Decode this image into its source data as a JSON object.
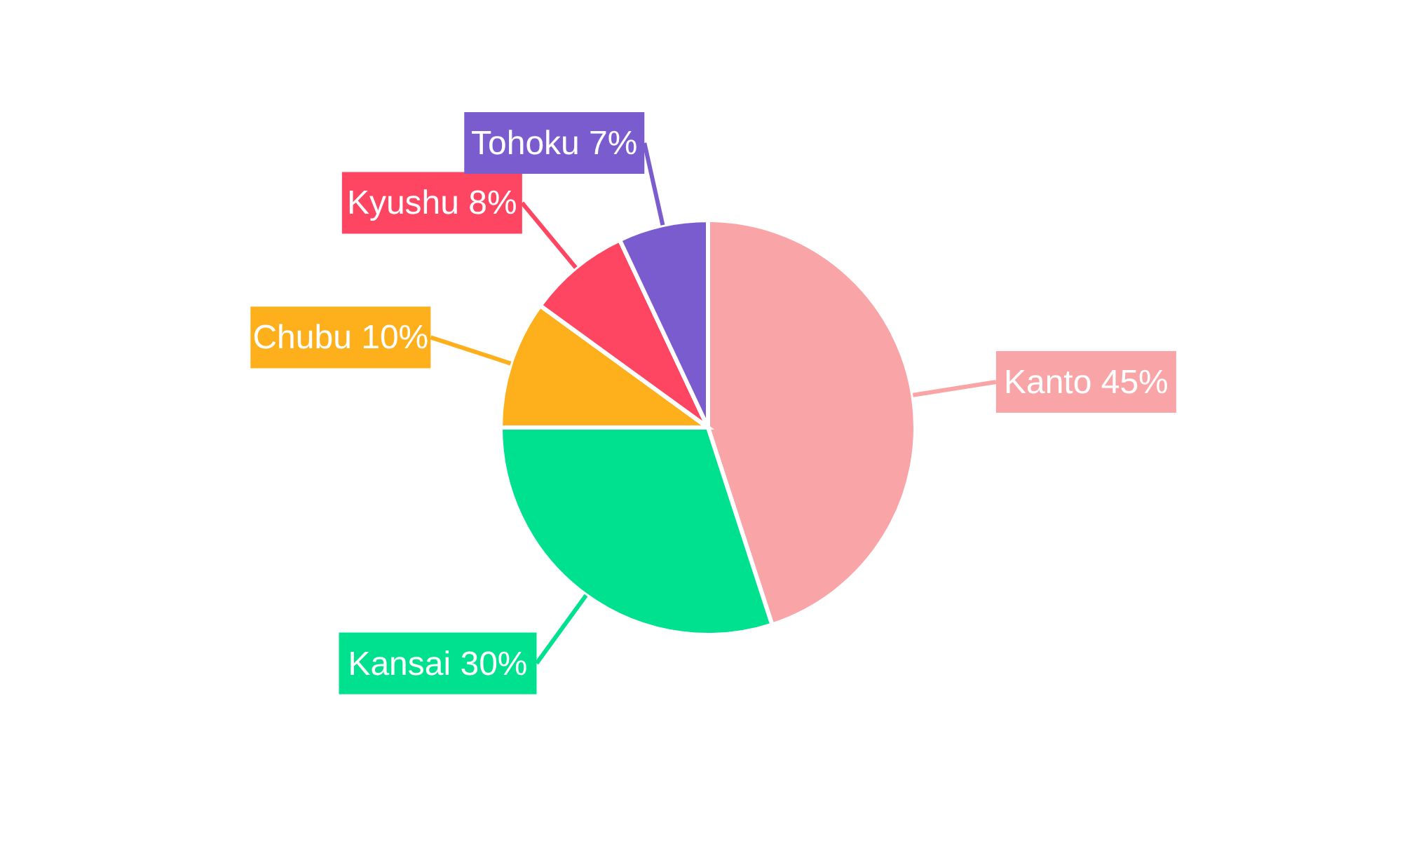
{
  "chart_data": {
    "type": "pie",
    "categories": [
      "Kanto",
      "Kansai",
      "Chubu",
      "Kyushu",
      "Tohoku"
    ],
    "values": [
      45,
      30,
      10,
      8,
      7
    ],
    "value_labels": [
      "45%",
      "30%",
      "10%",
      "8%",
      "7%"
    ],
    "colors": [
      "#f9a5a8",
      "#00e190",
      "#feb01c",
      "#fe4562",
      "#7a5ccf"
    ],
    "legend": false
  }
}
